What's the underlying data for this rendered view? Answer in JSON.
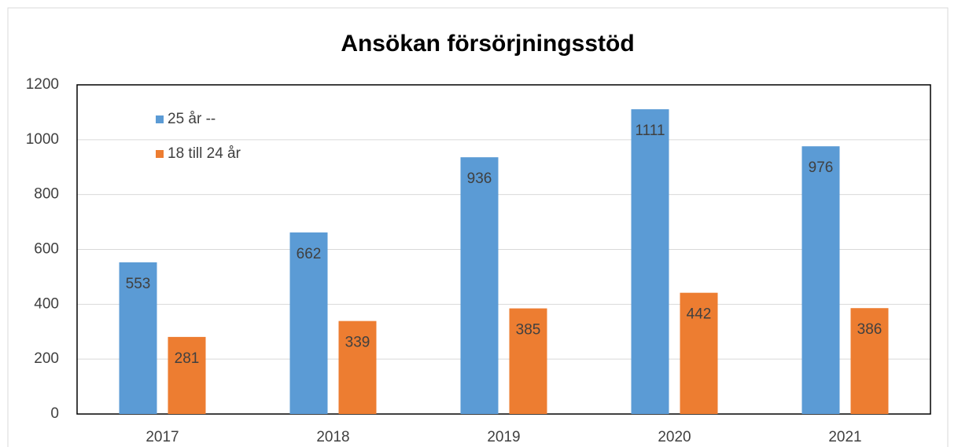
{
  "chart_data": {
    "type": "bar",
    "title": "Ansökan försörjningsstöd",
    "categories": [
      "2017",
      "2018",
      "2019",
      "2020",
      "2021"
    ],
    "series": [
      {
        "name": "25 år --",
        "color": "#5b9bd5",
        "values": [
          553,
          662,
          936,
          1111,
          976
        ]
      },
      {
        "name": "18 till 24 år",
        "color": "#ed7d31",
        "values": [
          281,
          339,
          385,
          442,
          386
        ]
      }
    ],
    "ylim": [
      0,
      1200
    ],
    "yticks": [
      0,
      200,
      400,
      600,
      800,
      1000,
      1200
    ],
    "grid": true,
    "legend": "top-left"
  }
}
